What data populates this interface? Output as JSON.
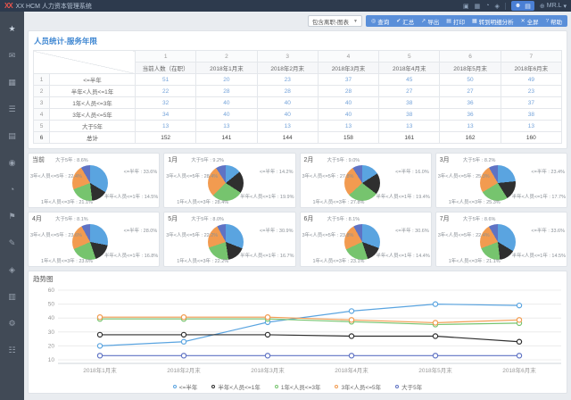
{
  "topbar": {
    "logo": "XX",
    "title": "XX HCM 人力资本管理系统",
    "username": "MR.L",
    "caret": "▾",
    "language_icon": "⊕",
    "icons": [
      {
        "name": "calendar-icon",
        "glyph": "▣"
      },
      {
        "name": "apps-icon",
        "glyph": "▦"
      },
      {
        "name": "history-icon",
        "glyph": "◔"
      },
      {
        "name": "notification-icon",
        "glyph": "◈"
      }
    ],
    "avatar_icons": [
      {
        "name": "user-avatar-icon",
        "glyph": "☻"
      },
      {
        "name": "org-switch-icon",
        "glyph": "▤"
      }
    ]
  },
  "sidebar": {
    "items": [
      {
        "name": "favorites",
        "glyph": "★"
      },
      {
        "name": "messages",
        "glyph": "✉"
      },
      {
        "name": "dashboard",
        "glyph": "▦"
      },
      {
        "name": "menu",
        "glyph": "☰"
      },
      {
        "name": "reports",
        "glyph": "▤"
      },
      {
        "name": "org",
        "glyph": "◉"
      },
      {
        "name": "schedule",
        "glyph": "◔"
      },
      {
        "name": "flag",
        "glyph": "⚑"
      },
      {
        "name": "edit",
        "glyph": "✎"
      },
      {
        "name": "analytics",
        "glyph": "◈"
      },
      {
        "name": "documents",
        "glyph": "▥"
      },
      {
        "name": "settings",
        "glyph": "⚙"
      },
      {
        "name": "more",
        "glyph": "☷"
      }
    ]
  },
  "toolbar": {
    "view_select": "包含离职-图表",
    "select_caret": "▼",
    "buttons": [
      {
        "name": "query",
        "glyph": "◎",
        "label": "查询"
      },
      {
        "name": "summary",
        "glyph": "✔",
        "label": "汇总"
      },
      {
        "name": "export",
        "glyph": "↗",
        "label": "导出"
      },
      {
        "name": "print",
        "glyph": "▤",
        "label": "打印"
      },
      {
        "name": "goto-detail-analysis",
        "glyph": "▦",
        "label": "转到明细分析"
      },
      {
        "name": "fullscreen",
        "glyph": "✕",
        "label": "全屏"
      },
      {
        "name": "help",
        "glyph": "?",
        "label": "帮助"
      }
    ]
  },
  "panel": {
    "title": "人员统计-服务年限"
  },
  "table": {
    "col_numbers": [
      "1",
      "2",
      "3",
      "4",
      "5",
      "6",
      "7"
    ],
    "columns": [
      "当前人数（在职）",
      "2018年1月末",
      "2018年2月末",
      "2018年3月末",
      "2018年4月末",
      "2018年5月末",
      "2018年6月末"
    ],
    "rows": [
      {
        "num": "1",
        "label": "<=半年",
        "values": [
          51,
          20,
          23,
          37,
          45,
          50,
          49
        ],
        "is_total": false
      },
      {
        "num": "2",
        "label": "半年<人员<=1年",
        "values": [
          22,
          28,
          28,
          28,
          27,
          27,
          23
        ],
        "is_total": false
      },
      {
        "num": "3",
        "label": "1年<人员<=3年",
        "values": [
          32,
          40,
          40,
          40,
          38,
          36,
          37
        ],
        "is_total": false
      },
      {
        "num": "4",
        "label": "3年<人员<=5年",
        "values": [
          34,
          40,
          40,
          40,
          38,
          36,
          38
        ],
        "is_total": false
      },
      {
        "num": "5",
        "label": "大于5年",
        "values": [
          13,
          13,
          13,
          13,
          13,
          13,
          13
        ],
        "is_total": false
      },
      {
        "num": "6",
        "label": "总计",
        "values": [
          152,
          141,
          144,
          158,
          161,
          162,
          160
        ],
        "is_total": true
      }
    ]
  },
  "colors": {
    "accent": "#5a8fd9",
    "topbar_bg": "#2d3a4d",
    "sidebar_bg": "#414a56",
    "title_blue": "#3f87d2",
    "value_blue": "#74a3da",
    "series": [
      "#5aa4e0",
      "#2f2f2f",
      "#76c46e",
      "#f29b50",
      "#5f73c4"
    ]
  },
  "chart_data": [
    {
      "type": "pie",
      "title": "当前",
      "unit": "%",
      "categories": [
        "<=半年",
        "半年<人员<=1年",
        "1年<人员<=3年",
        "3年<人员<=5年",
        "大于5年"
      ],
      "values": [
        33.6,
        14.5,
        21.1,
        22.4,
        8.6
      ]
    },
    {
      "type": "pie",
      "title": "1月",
      "unit": "%",
      "categories": [
        "<=半年",
        "半年<人员<=1年",
        "1年<人员<=3年",
        "3年<人员<=5年",
        "大于5年"
      ],
      "values": [
        14.2,
        19.9,
        28.4,
        28.4,
        9.2
      ]
    },
    {
      "type": "pie",
      "title": "2月",
      "unit": "%",
      "categories": [
        "<=半年",
        "半年<人员<=1年",
        "1年<人员<=3年",
        "3年<人员<=5年",
        "大于5年"
      ],
      "values": [
        16.0,
        19.4,
        27.8,
        27.8,
        9.0
      ]
    },
    {
      "type": "pie",
      "title": "3月",
      "unit": "%",
      "categories": [
        "<=半年",
        "半年<人员<=1年",
        "1年<人员<=3年",
        "3年<人员<=5年",
        "大于5年"
      ],
      "values": [
        23.4,
        17.7,
        25.3,
        25.3,
        8.2
      ]
    },
    {
      "type": "pie",
      "title": "4月",
      "unit": "%",
      "categories": [
        "<=半年",
        "半年<人员<=1年",
        "1年<人员<=3年",
        "3年<人员<=5年",
        "大于5年"
      ],
      "values": [
        28.0,
        16.8,
        23.6,
        23.6,
        8.1
      ]
    },
    {
      "type": "pie",
      "title": "5月",
      "unit": "%",
      "categories": [
        "<=半年",
        "半年<人员<=1年",
        "1年<人员<=3年",
        "3年<人员<=5年",
        "大于5年"
      ],
      "values": [
        30.9,
        16.7,
        22.2,
        22.2,
        8.0
      ]
    },
    {
      "type": "pie",
      "title": "6月",
      "unit": "%",
      "categories": [
        "<=半年",
        "半年<人员<=1年",
        "1年<人员<=3年",
        "3年<人员<=5年",
        "大于5年"
      ],
      "values": [
        30.6,
        14.4,
        23.1,
        23.8,
        8.1
      ]
    },
    {
      "type": "pie",
      "title": "7月",
      "unit": "%",
      "categories": [
        "<=半年",
        "半年<人员<=1年",
        "1年<人员<=3年",
        "3年<人员<=5年",
        "大于5年"
      ],
      "values": [
        33.6,
        14.5,
        21.1,
        22.4,
        8.6
      ]
    },
    {
      "type": "line",
      "title": "趋势图",
      "categories": [
        "2018年1月末",
        "2018年2月末",
        "2018年3月末",
        "2018年4月末",
        "2018年5月末",
        "2018年6月末"
      ],
      "series": [
        {
          "name": "<=半年",
          "color": "#5aa4e0",
          "values": [
            20,
            23,
            37,
            45,
            50,
            49
          ]
        },
        {
          "name": "半年<人员<=1年",
          "color": "#2f2f2f",
          "values": [
            28,
            28,
            28,
            27,
            27,
            23
          ]
        },
        {
          "name": "1年<人员<=3年",
          "color": "#76c46e",
          "values": [
            40,
            40,
            40,
            38,
            36,
            37
          ]
        },
        {
          "name": "3年<人员<=5年",
          "color": "#f29b50",
          "values": [
            40,
            40,
            40,
            38,
            36,
            38
          ]
        },
        {
          "name": "大于5年",
          "color": "#5f73c4",
          "values": [
            13,
            13,
            13,
            13,
            13,
            13
          ]
        }
      ],
      "yticks": [
        10,
        20,
        30,
        40,
        50,
        60
      ],
      "ylim": [
        10,
        60
      ],
      "grid": true,
      "legend_position": "bottom"
    }
  ]
}
